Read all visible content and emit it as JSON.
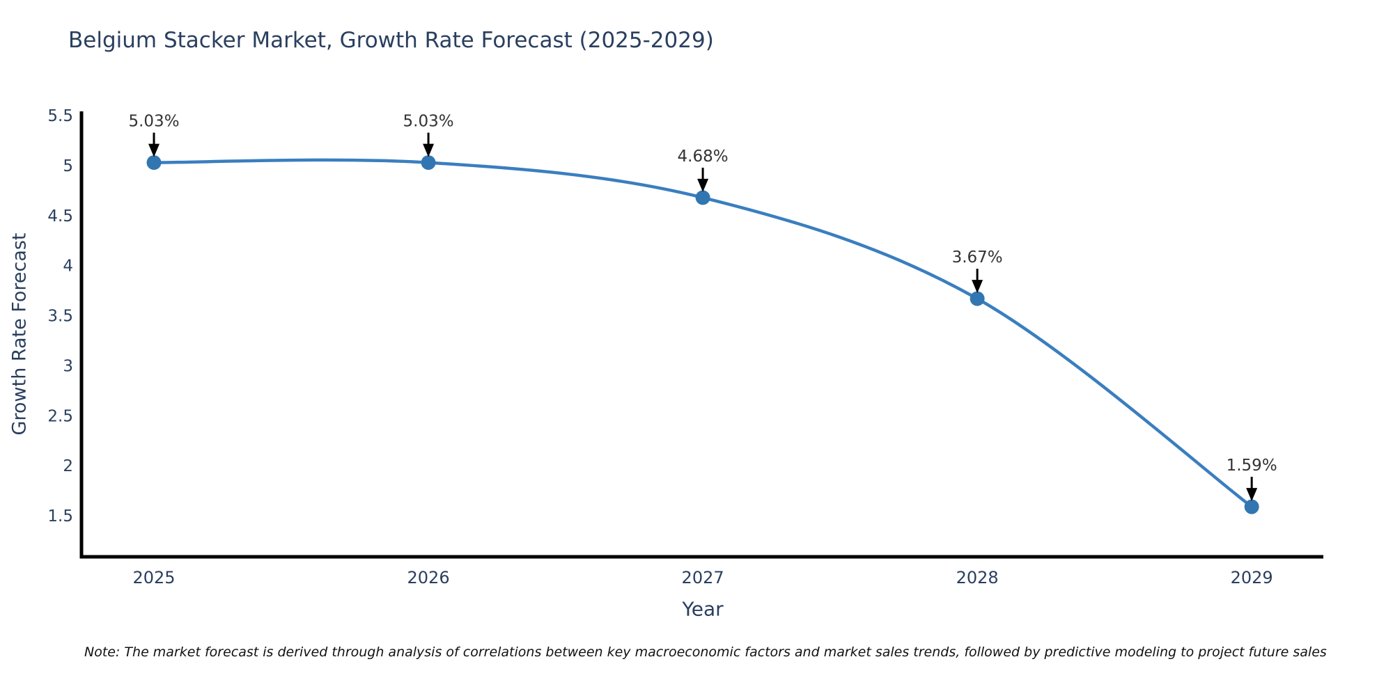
{
  "page": {
    "note": "Note: The market forecast is derived through analysis of correlations between key macroeconomic factors and market sales trends, followed by predictive modeling to project future sales"
  },
  "chart_data": {
    "type": "line",
    "title": "Belgium Stacker Market, Growth Rate Forecast (2025-2029)",
    "xlabel": "Year",
    "ylabel": "Growth Rate Forecast",
    "categories": [
      "2025",
      "2026",
      "2027",
      "2028",
      "2029"
    ],
    "values": [
      5.03,
      5.03,
      4.68,
      3.67,
      1.59
    ],
    "point_labels": [
      "5.03%",
      "5.03%",
      "4.68%",
      "3.67%",
      "1.59%"
    ],
    "y_ticks": [
      "5.5",
      "5",
      "4.5",
      "4",
      "3.5",
      "3",
      "2.5",
      "2",
      "1.5"
    ],
    "y_tick_values": [
      5.5,
      5,
      4.5,
      4,
      3.5,
      3,
      2.5,
      2,
      1.5
    ],
    "xlim": [
      2024.736,
      2029.261
    ],
    "x_values": [
      2025,
      2026,
      2027,
      2028,
      2029
    ],
    "ylim": [
      1.09,
      5.542
    ],
    "grid": false,
    "legend": false,
    "smooth": true,
    "colors": {
      "line": "#3a7ebf",
      "marker": "#3276b1",
      "axis": "#000000",
      "title": "#2a3f5f",
      "tick": "#2a3f5f",
      "annotation": "#333333",
      "arrow": "#000000",
      "background": "#ffffff"
    }
  }
}
